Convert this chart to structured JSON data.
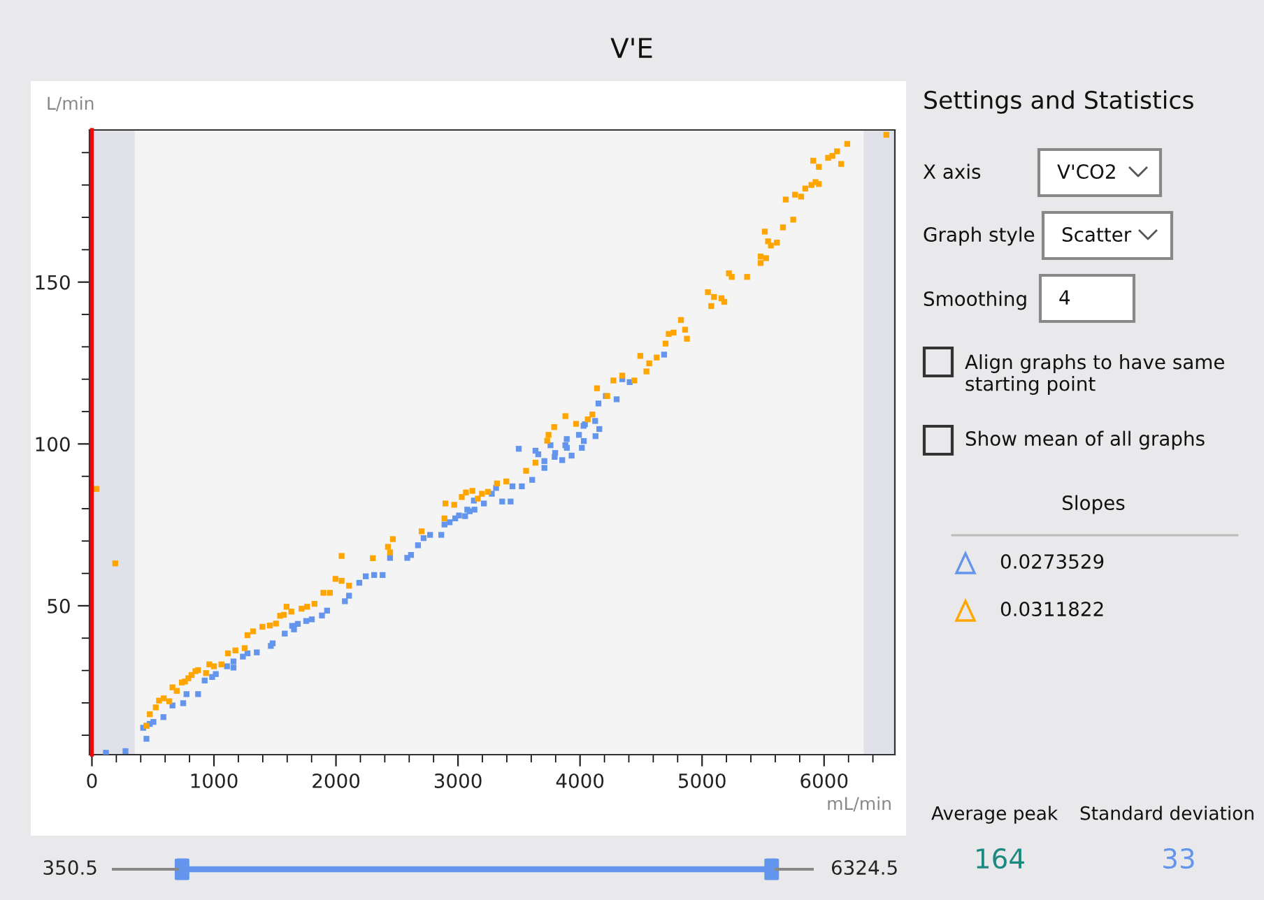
{
  "chart_data": [
    {
      "type": "scatter",
      "title": "V'E",
      "xlabel": "mL/min",
      "ylabel": "L/min",
      "xlim": [
        -20,
        6580
      ],
      "ylim": [
        4,
        197
      ],
      "xticks": [
        0,
        1000,
        2000,
        3000,
        4000,
        5000,
        6000,
        {
          "value": 200,
          "label": null
        },
        {
          "value": 400,
          "label": null
        },
        {
          "value": 600,
          "label": null
        },
        {
          "value": 800,
          "label": null
        },
        {
          "value": 1200,
          "label": null
        },
        {
          "value": 1400,
          "label": null
        },
        {
          "value": 1600,
          "label": null
        },
        {
          "value": 1800,
          "label": null
        },
        {
          "value": 2200,
          "label": null
        },
        {
          "value": 2400,
          "label": null
        },
        {
          "value": 2600,
          "label": null
        },
        {
          "value": 2800,
          "label": null
        },
        {
          "value": 3200,
          "label": null
        },
        {
          "value": 3400,
          "label": null
        },
        {
          "value": 3600,
          "label": null
        },
        {
          "value": 3800,
          "label": null
        },
        {
          "value": 4200,
          "label": null
        },
        {
          "value": 4400,
          "label": null
        },
        {
          "value": 4600,
          "label": null
        },
        {
          "value": 4800,
          "label": null
        },
        {
          "value": 5200,
          "label": null
        },
        {
          "value": 5400,
          "label": null
        },
        {
          "value": 5600,
          "label": null
        },
        {
          "value": 5800,
          "label": null
        },
        {
          "value": 6200,
          "label": null
        },
        {
          "value": 6400,
          "label": null
        }
      ],
      "yticks": [
        50,
        100,
        150,
        {
          "value": 10,
          "label": null
        },
        {
          "value": 20,
          "label": null
        },
        {
          "value": 30,
          "label": null
        },
        {
          "value": 40,
          "label": null
        },
        {
          "value": 60,
          "label": null
        },
        {
          "value": 70,
          "label": null
        },
        {
          "value": 80,
          "label": null
        },
        {
          "value": 90,
          "label": null
        },
        {
          "value": 110,
          "label": null
        },
        {
          "value": 120,
          "label": null
        },
        {
          "value": 130,
          "label": null
        },
        {
          "value": 140,
          "label": null
        },
        {
          "value": 160,
          "label": null
        },
        {
          "value": 170,
          "label": null
        },
        {
          "value": 180,
          "label": null
        },
        {
          "value": 190,
          "label": null
        }
      ],
      "grid": false,
      "marker": "square",
      "ref_lines": [
        {
          "axis": "x",
          "value": 0,
          "color": "#ff0000"
        }
      ],
      "bands": [
        {
          "axis": "x",
          "from": -20,
          "to": 350.5,
          "color": "#e1e1ea"
        },
        {
          "axis": "x",
          "from": 6324.5,
          "to": 6580,
          "color": "#e1e1ea"
        }
      ],
      "annotations": [
        "350.5",
        "6324.5"
      ],
      "series": [
        {
          "color": "#6495ed",
          "x": [
            115,
            275,
            420,
            447,
            447,
            474,
            504,
            586,
            660,
            748,
            775,
            870,
            924,
            985,
            1015,
            1107,
            1160,
            1160,
            1237,
            1275,
            1351,
            1466,
            1481,
            1580,
            1641,
            1656,
            1687,
            1756,
            1802,
            1885,
            1927,
            2073,
            2107,
            2191,
            2244,
            2313,
            2382,
            2443,
            2584,
            2615,
            2672,
            2718,
            2771,
            2863,
            2889,
            2931,
            2977,
            3008,
            3076,
            3130,
            3058,
            3096,
            3135,
            3212,
            3277,
            3312,
            3362,
            3431,
            3446,
            3498,
            3523,
            3608,
            3635,
            3658,
            3708,
            3708,
            3758,
            3792,
            3796,
            3854,
            3880,
            3891,
            3892,
            3931,
            3991,
            4015,
            4029,
            4031,
            4040,
            4124,
            4127,
            4151,
            4158,
            4212,
            4300,
            4346,
            4407,
            4689
          ],
          "values": [
            4.6,
            5.1,
            12.3,
            12.9,
            8.9,
            13.5,
            14.1,
            15.6,
            19.2,
            19.9,
            22.7,
            22.7,
            26.9,
            28.0,
            28.9,
            31.3,
            32.8,
            30.9,
            34.3,
            35.3,
            35.6,
            37.6,
            38.4,
            41.4,
            43.8,
            42.7,
            44.4,
            45.3,
            45.8,
            47.0,
            48.5,
            51.4,
            53.1,
            57.1,
            59.1,
            59.5,
            59.5,
            64.8,
            64.8,
            65.7,
            68.7,
            70.9,
            71.9,
            71.9,
            75.1,
            75.8,
            77.0,
            77.9,
            79.7,
            82.5,
            77.7,
            79.2,
            79.7,
            81.6,
            84.6,
            86.4,
            82.2,
            82.2,
            86.9,
            98.5,
            86.9,
            88.9,
            97.9,
            96.8,
            92.6,
            94.7,
            99.6,
            96.0,
            97.2,
            95.0,
            99.6,
            101.5,
            98.8,
            96.4,
            102.8,
            98.8,
            105.6,
            100.9,
            106.1,
            107.1,
            102.4,
            112.5,
            104.6,
            114.8,
            113.8,
            120.0,
            119.1,
            127.6
          ]
        },
        {
          "color": "#ffa500",
          "x": [
            38,
            191,
            447,
            474,
            523,
            550,
            588,
            634,
            660,
            695,
            737,
            763,
            790,
            817,
            848,
            870,
            935,
            962,
            1000,
            1061,
            1115,
            1176,
            1252,
            1275,
            1321,
            1397,
            1458,
            1508,
            1542,
            1573,
            1595,
            1634,
            1718,
            1763,
            1824,
            1897,
            1950,
            1996,
            2046,
            2046,
            2107,
            2302,
            2426,
            2443,
            2466,
            2702,
            2889,
            2897,
            2969,
            3031,
            3065,
            3118,
            3162,
            3196,
            3246,
            3319,
            3396,
            3558,
            3635,
            3731,
            3742,
            3788,
            3880,
            3968,
            4063,
            4101,
            4139,
            4223,
            4273,
            4346,
            4445,
            4494,
            4544,
            4567,
            4628,
            4701,
            4727,
            4766,
            4827,
            4861,
            4876,
            5048,
            5075,
            5098,
            5159,
            5182,
            5220,
            5243,
            5369,
            5480,
            5480,
            5514,
            5525,
            5541,
            5564,
            5613,
            5663,
            5686,
            5747,
            5762,
            5812,
            5846,
            5896,
            5911,
            5930,
            5957,
            5957,
            6033,
            6068,
            6106,
            6140,
            6190,
            6510
          ],
          "values": [
            86.1,
            63.1,
            12.9,
            16.5,
            18.6,
            20.7,
            21.4,
            20.5,
            24.8,
            23.7,
            26.3,
            26.6,
            27.6,
            28.6,
            29.8,
            30.1,
            29.2,
            31.9,
            31.3,
            31.9,
            35.3,
            36.2,
            36.9,
            40.9,
            42.1,
            43.5,
            43.9,
            44.5,
            46.9,
            47.2,
            49.7,
            48.2,
            49.1,
            49.7,
            50.6,
            54.0,
            54.0,
            58.3,
            57.7,
            65.4,
            56.2,
            64.7,
            68.2,
            66.5,
            70.6,
            73.0,
            77.0,
            81.6,
            81.2,
            83.6,
            85.0,
            85.5,
            83.1,
            84.6,
            85.2,
            87.8,
            88.4,
            91.7,
            94.2,
            101.0,
            102.8,
            105.2,
            108.6,
            106.2,
            107.6,
            109.1,
            117.2,
            114.8,
            119.6,
            121.1,
            119.6,
            127.2,
            122.4,
            124.9,
            126.7,
            131.0,
            134.0,
            134.4,
            138.3,
            135.3,
            132.5,
            146.9,
            142.6,
            145.4,
            145.0,
            143.9,
            152.7,
            151.6,
            151.6,
            157.9,
            155.9,
            165.6,
            157.4,
            162.6,
            161.3,
            162.2,
            166.9,
            175.5,
            169.3,
            177.0,
            176.4,
            178.9,
            180.0,
            187.5,
            180.9,
            180.3,
            185.6,
            188.4,
            189.0,
            190.4,
            186.5,
            192.7,
            195.5
          ]
        }
      ]
    },
    {
      "type": "other",
      "title": "Settings and Statistics",
      "annotations": [
        "X axis",
        "V'CO2",
        "Graph style",
        "Scatter",
        "Smoothing",
        "4",
        "Align graphs to have same starting point",
        "Show mean of all graphs",
        "Slopes",
        "0.0273529",
        "0.0311822",
        "Average peak",
        "Standard deviation",
        "164",
        "33"
      ]
    }
  ]
}
